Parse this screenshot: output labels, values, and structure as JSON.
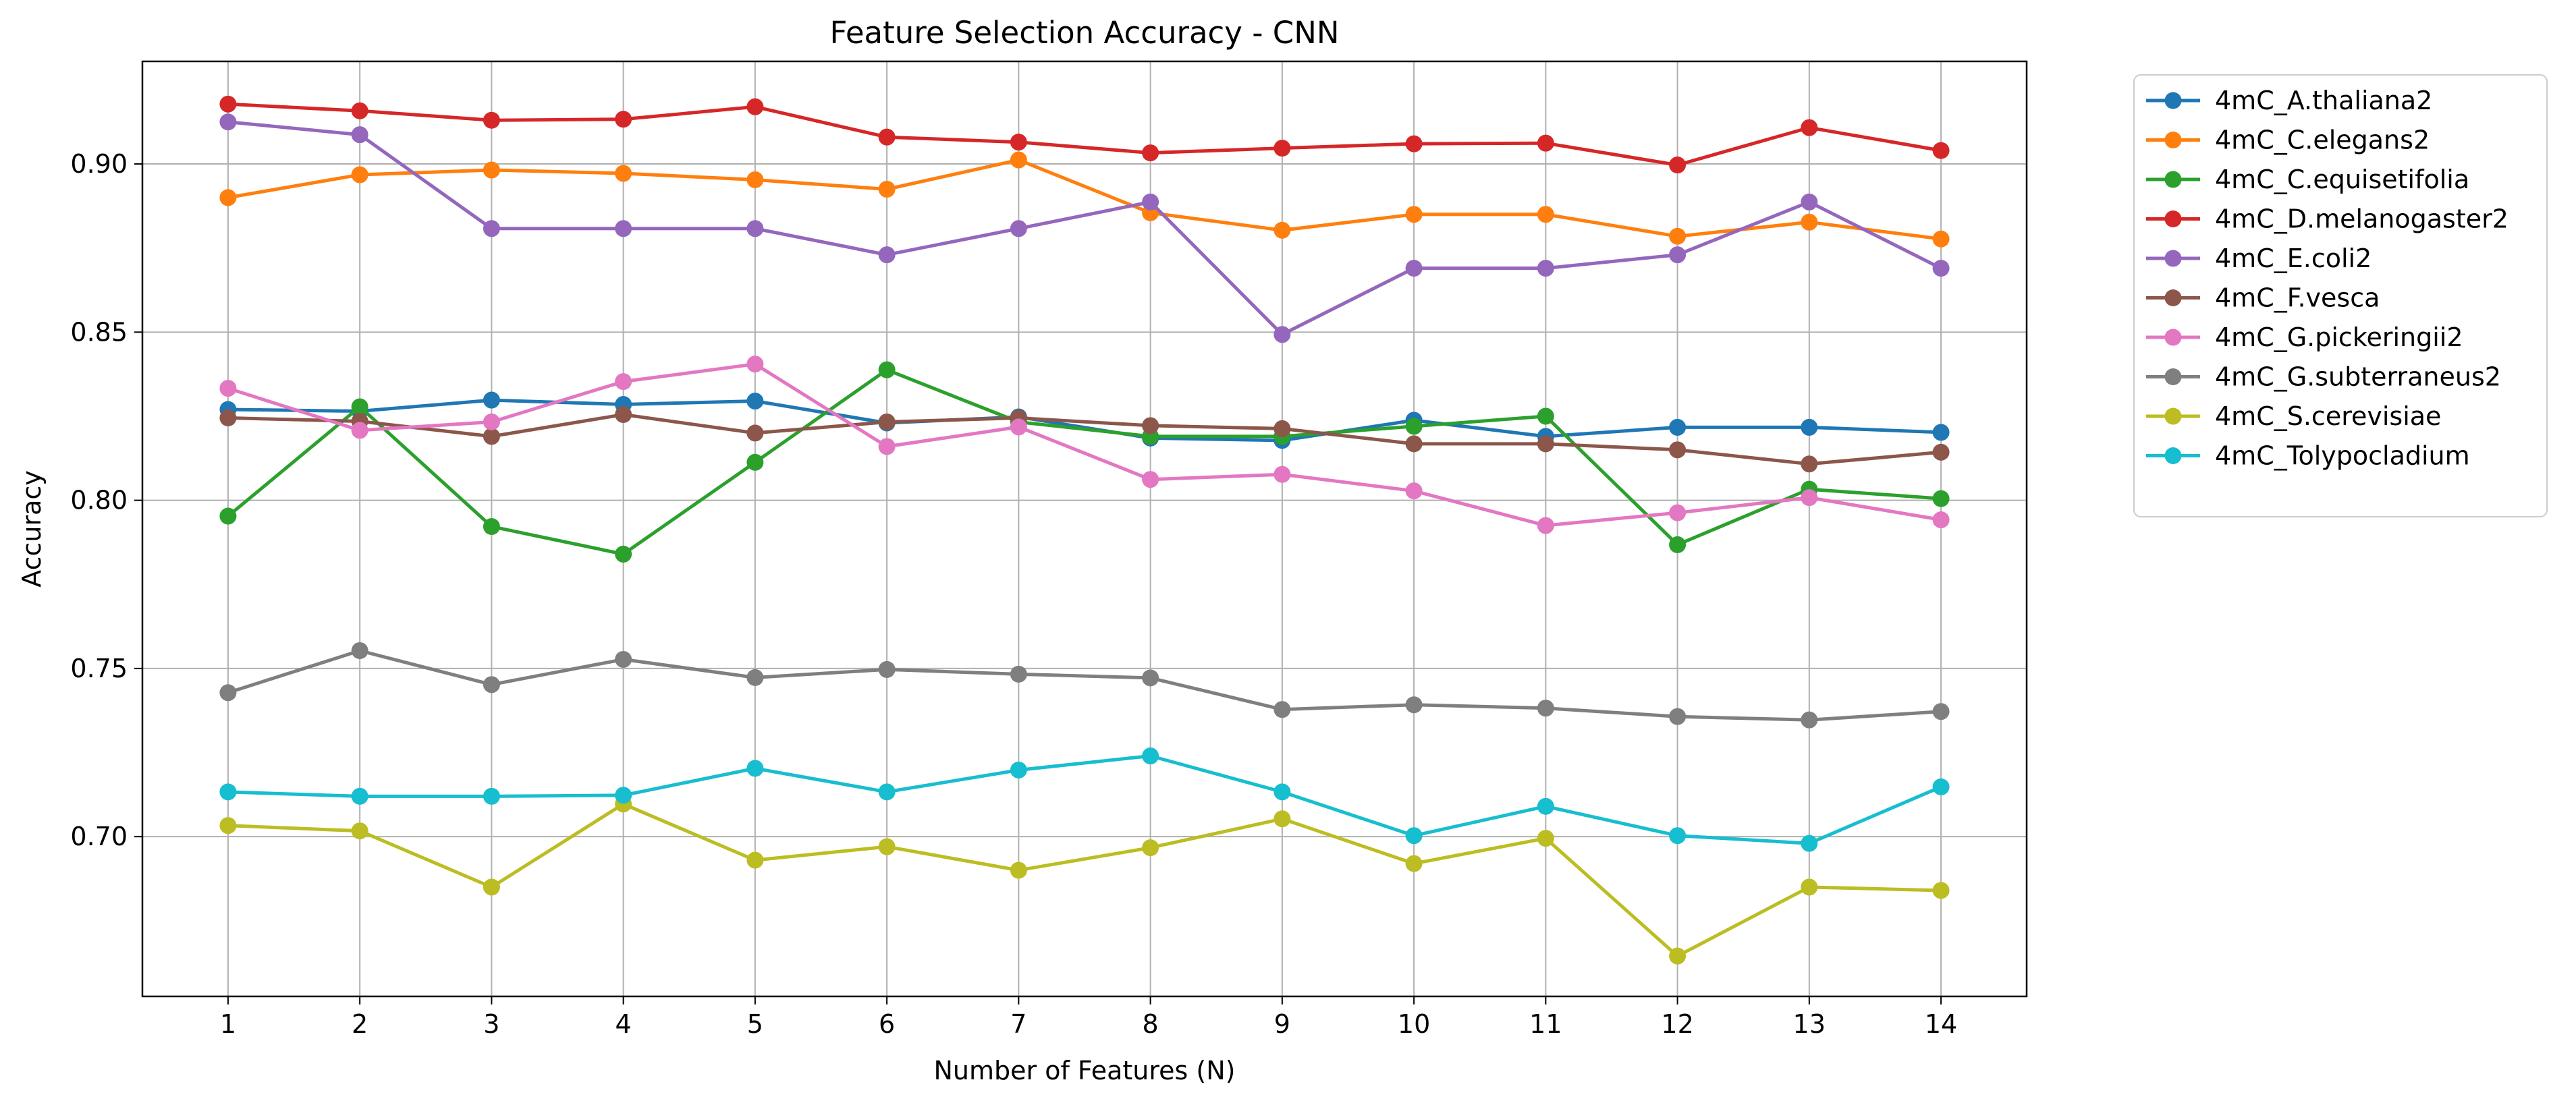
{
  "chart_data": {
    "type": "line",
    "title": "Feature Selection Accuracy - CNN",
    "xlabel": "Number of Features (N)",
    "ylabel": "Accuracy",
    "x": [
      1,
      2,
      3,
      4,
      5,
      6,
      7,
      8,
      9,
      10,
      11,
      12,
      13,
      14
    ],
    "xlim": [
      0.35,
      14.65
    ],
    "ylim": [
      0.6525,
      0.9305
    ],
    "yticks": [
      0.7,
      0.75,
      0.8,
      0.85,
      0.9
    ],
    "ytick_labels": [
      "0.70",
      "0.75",
      "0.80",
      "0.85",
      "0.90"
    ],
    "xtick_labels": [
      "1",
      "2",
      "3",
      "4",
      "5",
      "6",
      "7",
      "8",
      "9",
      "10",
      "11",
      "12",
      "13",
      "14"
    ],
    "grid": true,
    "legend_position": "outside-right",
    "series": [
      {
        "name": "4mC_A.thaliana2",
        "color": "#1f77b4",
        "values": [
          0.827,
          0.8265,
          0.8298,
          0.8285,
          0.8295,
          0.823,
          0.8248,
          0.8185,
          0.8178,
          0.8238,
          0.819,
          0.8217,
          0.8217,
          0.8202
        ]
      },
      {
        "name": "4mC_C.elegans2",
        "color": "#ff7f0e",
        "values": [
          0.89,
          0.8968,
          0.8982,
          0.8972,
          0.8953,
          0.8925,
          0.9012,
          0.8855,
          0.8803,
          0.885,
          0.885,
          0.8785,
          0.8827,
          0.8777
        ]
      },
      {
        "name": "4mC_C.equisetifolia",
        "color": "#2ca02c",
        "values": [
          0.7953,
          0.8278,
          0.7922,
          0.784,
          0.8113,
          0.8388,
          0.8233,
          0.819,
          0.819,
          0.822,
          0.825,
          0.7868,
          0.8033,
          0.8005
        ]
      },
      {
        "name": "4mC_D.melanogaster2",
        "color": "#d62728",
        "values": [
          0.9178,
          0.9158,
          0.913,
          0.9133,
          0.917,
          0.908,
          0.9065,
          0.9033,
          0.9047,
          0.906,
          0.9062,
          0.8997,
          0.9108,
          0.904
        ]
      },
      {
        "name": "4mC_E.coli2",
        "color": "#9467bd",
        "values": [
          0.9125,
          0.9087,
          0.8808,
          0.8808,
          0.8808,
          0.873,
          0.8808,
          0.8887,
          0.8493,
          0.869,
          0.869,
          0.873,
          0.8887,
          0.869
        ]
      },
      {
        "name": "4mC_F.vesca",
        "color": "#8c564b",
        "values": [
          0.8245,
          0.8235,
          0.819,
          0.8255,
          0.82,
          0.8233,
          0.8245,
          0.8222,
          0.8213,
          0.8168,
          0.8168,
          0.815,
          0.8108,
          0.8143
        ]
      },
      {
        "name": "4mC_G.pickeringii2",
        "color": "#e377c2",
        "values": [
          0.8333,
          0.8208,
          0.8233,
          0.8353,
          0.8405,
          0.816,
          0.8218,
          0.8062,
          0.8077,
          0.8028,
          0.7925,
          0.7963,
          0.8008,
          0.7942
        ]
      },
      {
        "name": "4mC_G.subterraneus2",
        "color": "#7f7f7f",
        "values": [
          0.7428,
          0.7553,
          0.7452,
          0.7527,
          0.7473,
          0.7497,
          0.7483,
          0.7472,
          0.7378,
          0.7392,
          0.7382,
          0.7357,
          0.7347,
          0.7372
        ]
      },
      {
        "name": "4mC_S.cerevisiae",
        "color": "#bcbd22",
        "values": [
          0.7033,
          0.7017,
          0.685,
          0.7097,
          0.693,
          0.697,
          0.69,
          0.6967,
          0.7053,
          0.692,
          0.6995,
          0.6645,
          0.685,
          0.684
        ]
      },
      {
        "name": "4mC_Tolypocladium",
        "color": "#17becf",
        "values": [
          0.7133,
          0.712,
          0.712,
          0.7123,
          0.7203,
          0.7133,
          0.7198,
          0.724,
          0.7133,
          0.7003,
          0.709,
          0.7003,
          0.698,
          0.7148
        ]
      }
    ]
  }
}
